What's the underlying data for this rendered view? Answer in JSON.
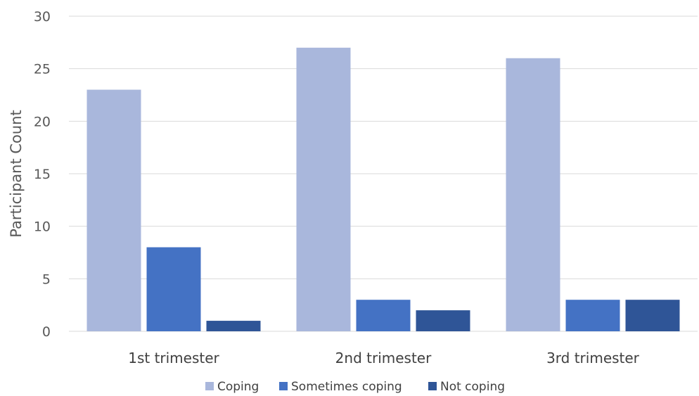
{
  "chart_data": {
    "type": "bar",
    "title": "",
    "xlabel": "",
    "ylabel": "Participant Count",
    "ylim": [
      0,
      30
    ],
    "yticks": [
      0,
      5,
      10,
      15,
      20,
      25,
      30
    ],
    "grid": true,
    "legend_position": "bottom",
    "categories": [
      "1st trimester",
      "2nd trimester",
      "3rd trimester"
    ],
    "series": [
      {
        "name": "Coping",
        "color": "#a9b7dc",
        "values": [
          23,
          27,
          26
        ]
      },
      {
        "name": "Sometimes coping",
        "color": "#4472c4",
        "values": [
          8,
          3,
          3
        ]
      },
      {
        "name": "Not coping",
        "color": "#2f5597",
        "values": [
          1,
          2,
          3
        ]
      }
    ]
  }
}
